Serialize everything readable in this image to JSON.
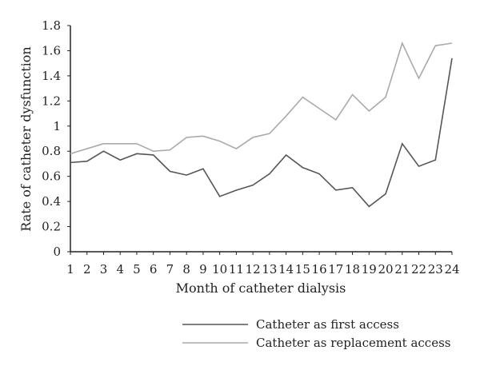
{
  "chart_data": {
    "type": "line",
    "xlabel": "Month of catheter dialysis",
    "ylabel": "Rate of catheter dysfunction",
    "ylim": [
      0,
      1.8
    ],
    "yticks": [
      "0",
      "0.2",
      "0.4",
      "0.6",
      "0.8",
      "1",
      "1.2",
      "1.4",
      "1.6",
      "1.8"
    ],
    "x": [
      1,
      2,
      3,
      4,
      5,
      6,
      7,
      8,
      9,
      10,
      11,
      12,
      13,
      14,
      15,
      16,
      17,
      18,
      19,
      20,
      21,
      22,
      23,
      24
    ],
    "grid": false,
    "legend_position": "bottom",
    "series": [
      {
        "name": "Catheter as first access",
        "color": "#555555",
        "values": [
          0.71,
          0.72,
          0.8,
          0.73,
          0.78,
          0.77,
          0.64,
          0.61,
          0.66,
          0.44,
          0.49,
          0.53,
          0.62,
          0.77,
          0.67,
          0.62,
          0.49,
          0.51,
          0.36,
          0.46,
          0.86,
          0.68,
          0.73,
          1.54
        ]
      },
      {
        "name": "Catheter as replacement access",
        "color": "#aaaaaa",
        "values": [
          0.78,
          0.82,
          0.86,
          0.86,
          0.86,
          0.8,
          0.81,
          0.91,
          0.92,
          0.88,
          0.82,
          0.91,
          0.94,
          1.08,
          1.23,
          1.14,
          1.05,
          1.25,
          1.12,
          1.23,
          1.66,
          1.38,
          1.64,
          1.66
        ]
      }
    ]
  }
}
